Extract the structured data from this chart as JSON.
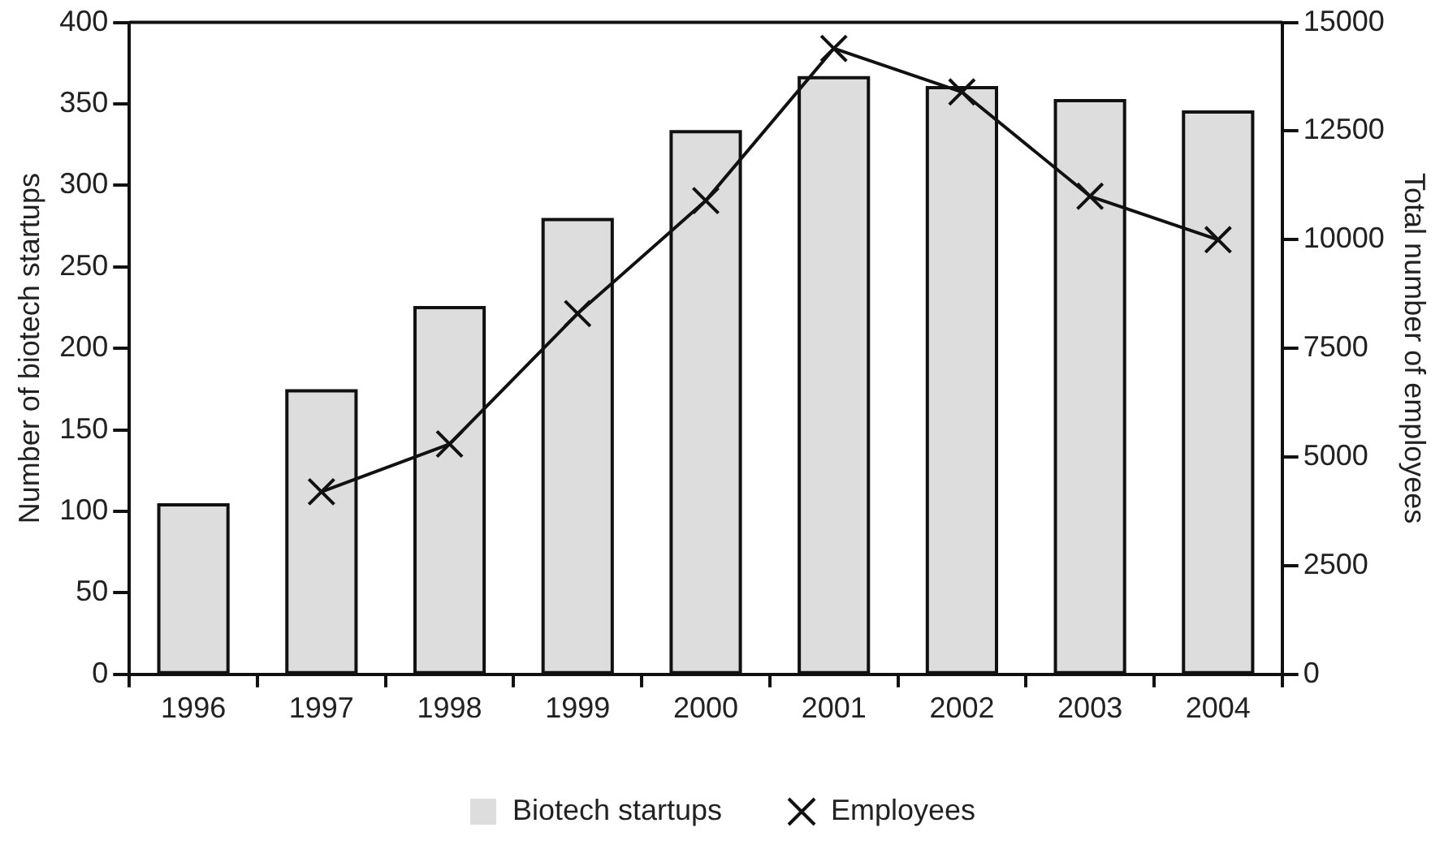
{
  "chart_data": {
    "type": "bar",
    "categories": [
      "1996",
      "1997",
      "1998",
      "1999",
      "2000",
      "2001",
      "2002",
      "2003",
      "2004"
    ],
    "ylabel": "Number of biotech startups",
    "y2label": "Total number of employees",
    "series": [
      {
        "name": "Biotech startups",
        "color": "#dddddd",
        "values": [
          104,
          174,
          225,
          279,
          333,
          366,
          360,
          352,
          345
        ]
      },
      {
        "name": "Employees",
        "type": "line",
        "axis": "y2",
        "color": "#111111",
        "values": [
          null,
          4200,
          5300,
          8300,
          10900,
          14400,
          13400,
          11000,
          10000
        ]
      }
    ],
    "ylim": [
      0,
      400
    ],
    "yticks": [
      0,
      50,
      100,
      150,
      200,
      250,
      300,
      350,
      400
    ],
    "y2lim": [
      0,
      15000
    ],
    "y2ticks": [
      0,
      2500,
      5000,
      7500,
      10000,
      12500,
      15000
    ],
    "marker": "cross",
    "grid": false,
    "legend": "bottom"
  }
}
